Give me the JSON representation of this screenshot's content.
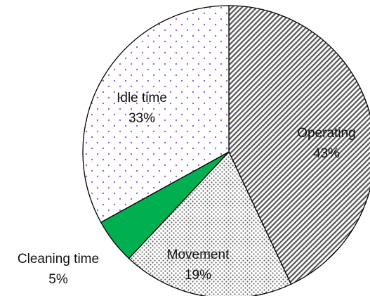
{
  "chart_data": {
    "type": "pie",
    "slices": [
      {
        "label": "Operating",
        "percent_label": "43%",
        "value": 43,
        "color": "#555555",
        "pattern": "diagonal-hatch"
      },
      {
        "label": "Movement",
        "percent_label": "19%",
        "value": 19,
        "color": "#666666",
        "pattern": "dots"
      },
      {
        "label": "Cleaning time",
        "percent_label": "5%",
        "value": 5,
        "color": "#00b050",
        "pattern": "solid"
      },
      {
        "label": "Idle time",
        "percent_label": "33%",
        "value": 33,
        "color": "#a060d0",
        "pattern": "purple-dots"
      }
    ],
    "start_angle": "12 o'clock",
    "direction": "clockwise"
  }
}
